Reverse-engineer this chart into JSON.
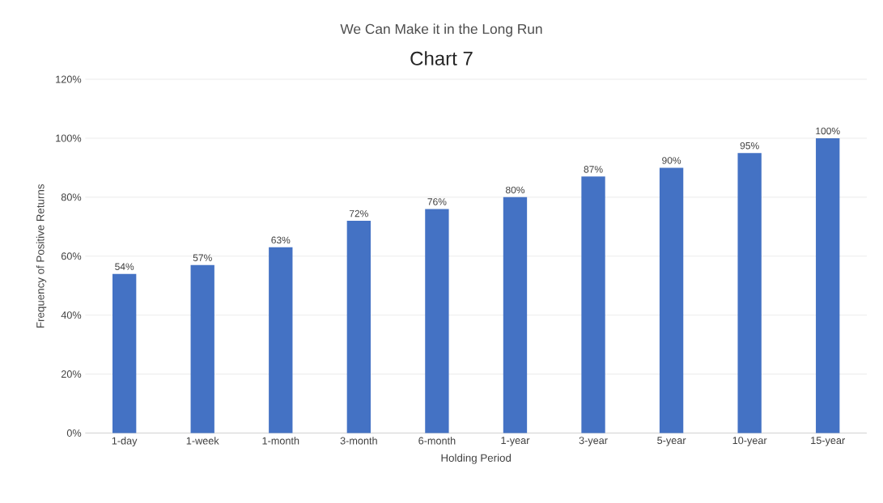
{
  "chart_data": {
    "type": "bar",
    "title": "We Can Make it in the Long Run",
    "subtitle": "Chart 7",
    "xlabel": "Holding Period",
    "ylabel": "Frequency of Positive Returns",
    "categories": [
      "1-day",
      "1-week",
      "1-month",
      "3-month",
      "6-month",
      "1-year",
      "3-year",
      "5-year",
      "10-year",
      "15-year"
    ],
    "values": [
      54,
      57,
      63,
      72,
      76,
      80,
      87,
      90,
      95,
      100
    ],
    "value_labels": [
      "54%",
      "57%",
      "63%",
      "72%",
      "76%",
      "80%",
      "87%",
      "90%",
      "95%",
      "100%"
    ],
    "color": "#4472c4",
    "ylim": [
      0,
      120
    ],
    "yticks": [
      {
        "value": 0,
        "label": "0%"
      },
      {
        "value": 20,
        "label": "20%"
      },
      {
        "value": 40,
        "label": "40%"
      },
      {
        "value": 60,
        "label": "60%"
      },
      {
        "value": 80,
        "label": "80%"
      },
      {
        "value": 100,
        "label": "100%"
      },
      {
        "value": 120,
        "label": "120%"
      }
    ],
    "grid": "y"
  }
}
